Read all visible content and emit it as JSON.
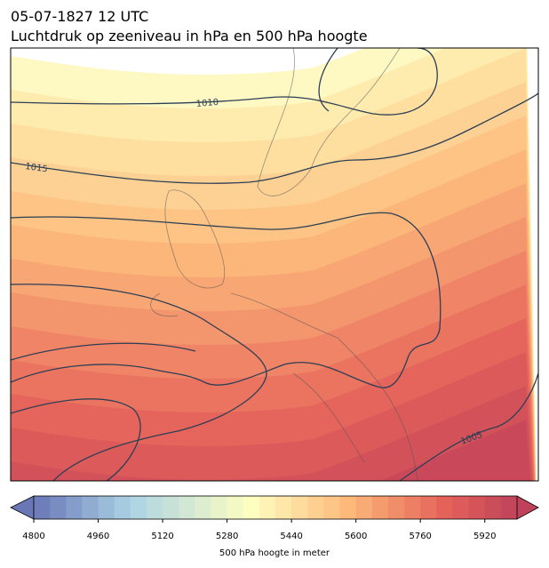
{
  "header": {
    "datetime": "05-07-1827 12 UTC",
    "title": "Luchtdruk op zeeniveau in hPa en 500 hPa hoogte"
  },
  "map": {
    "isobar_labels": [
      1010,
      1015,
      1005
    ]
  },
  "colorbar": {
    "label": "500 hPa hoogte in meter",
    "range": [
      4800,
      6000
    ],
    "ticks": [
      4800,
      4960,
      5120,
      5280,
      5440,
      5600,
      5760,
      5920
    ]
  }
}
